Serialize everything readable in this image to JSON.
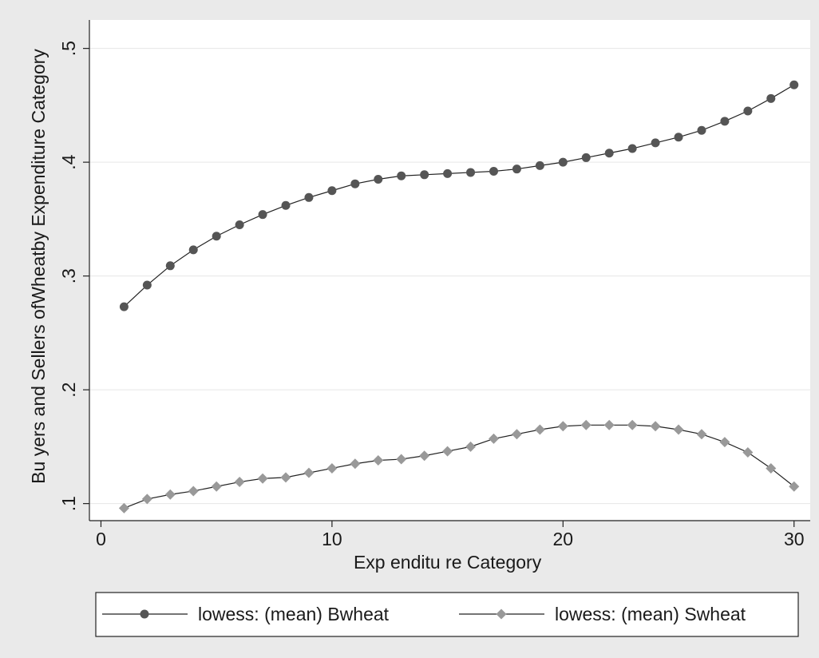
{
  "chart_data": {
    "type": "line",
    "xlabel": "Exp enditu re Category",
    "ylabel": "Bu yers and Sellers ofWheatby Expenditure Category",
    "xlim": [
      -0.5,
      30.7
    ],
    "ylim": [
      0.085,
      0.525
    ],
    "x_ticks": [
      0,
      10,
      20,
      30
    ],
    "x_tick_labels": [
      "0",
      "10",
      "20",
      "30"
    ],
    "y_ticks": [
      0.1,
      0.2,
      0.3,
      0.4,
      0.5
    ],
    "y_tick_labels": [
      ".1",
      ".2",
      ".3",
      ".4",
      ".5"
    ],
    "grid": true,
    "legend_position": "bottom",
    "series": [
      {
        "name": "lowess: (mean) Bwheat",
        "marker": "circle",
        "color": "#555555",
        "x": [
          1,
          2,
          3,
          4,
          5,
          6,
          7,
          8,
          9,
          10,
          11,
          12,
          13,
          14,
          15,
          16,
          17,
          18,
          19,
          20,
          21,
          22,
          23,
          24,
          25,
          26,
          27,
          28,
          29,
          30
        ],
        "values": [
          0.273,
          0.292,
          0.309,
          0.323,
          0.335,
          0.345,
          0.354,
          0.362,
          0.369,
          0.375,
          0.381,
          0.385,
          0.388,
          0.389,
          0.39,
          0.391,
          0.392,
          0.394,
          0.397,
          0.4,
          0.404,
          0.408,
          0.412,
          0.417,
          0.422,
          0.428,
          0.436,
          0.445,
          0.456,
          0.468
        ]
      },
      {
        "name": "lowess: (mean) Swheat",
        "marker": "diamond",
        "color": "#999999",
        "x": [
          1,
          2,
          3,
          4,
          5,
          6,
          7,
          8,
          9,
          10,
          11,
          12,
          13,
          14,
          15,
          16,
          17,
          18,
          19,
          20,
          21,
          22,
          23,
          24,
          25,
          26,
          27,
          28,
          29,
          30
        ],
        "values": [
          0.096,
          0.104,
          0.108,
          0.111,
          0.115,
          0.119,
          0.122,
          0.123,
          0.127,
          0.131,
          0.135,
          0.138,
          0.139,
          0.142,
          0.146,
          0.15,
          0.157,
          0.161,
          0.165,
          0.168,
          0.169,
          0.169,
          0.169,
          0.168,
          0.165,
          0.161,
          0.154,
          0.145,
          0.131,
          0.115
        ]
      }
    ]
  }
}
